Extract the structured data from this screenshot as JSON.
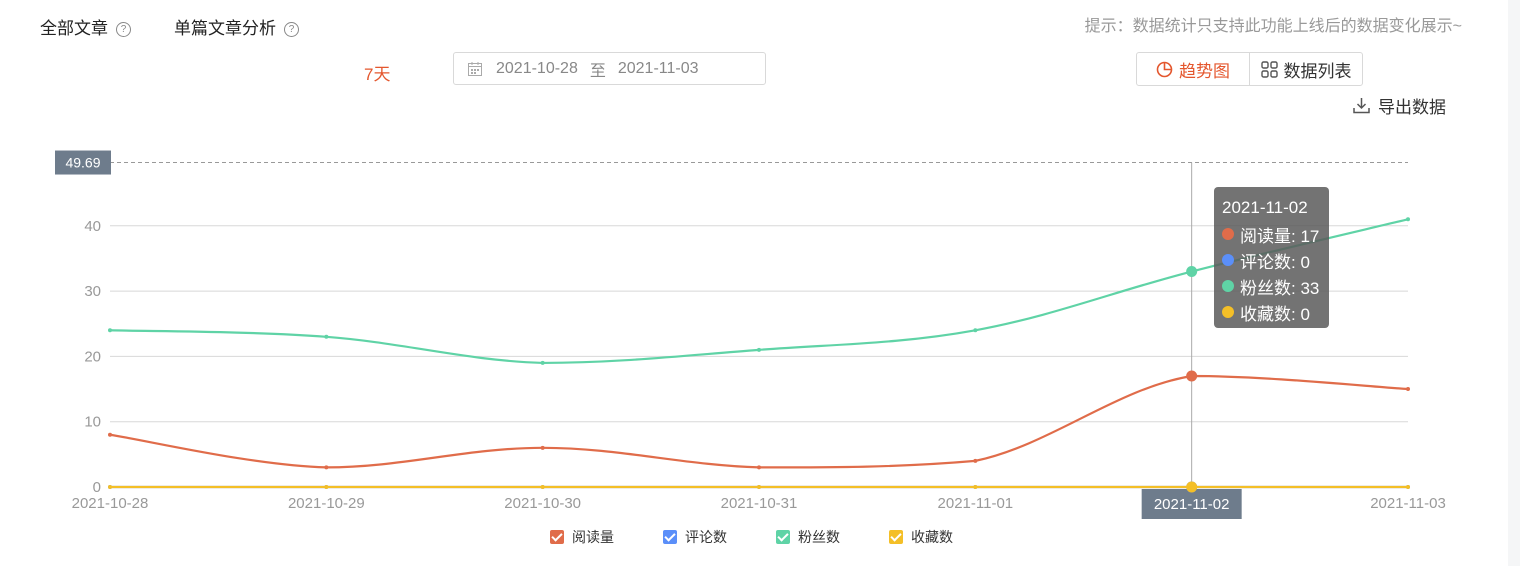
{
  "tabs": [
    {
      "label": "全部文章"
    },
    {
      "label": "单篇文章分析"
    }
  ],
  "hint": "提示：数据统计只支持此功能上线后的数据变化展示~",
  "range_label": "7天",
  "date_range": {
    "start": "2021-10-28",
    "separator": "至",
    "end": "2021-11-03"
  },
  "view_toggle": {
    "trend_label": "趋势图",
    "table_label": "数据列表"
  },
  "export_label": "导出数据",
  "colors": {
    "read": "#e06c4a",
    "comment": "#5b8ff9",
    "fans": "#5fd3a6",
    "collect": "#f4bf27",
    "accent": "#e4572e"
  },
  "tooltip": {
    "date": "2021-11-02",
    "rows": [
      {
        "text": "阅读量: 17",
        "color": "#e06c4a"
      },
      {
        "text": "评论数: 0",
        "color": "#5b8ff9"
      },
      {
        "text": "粉丝数: 33",
        "color": "#5fd3a6"
      },
      {
        "text": "收藏数: 0",
        "color": "#f4bf27"
      }
    ]
  },
  "chart_data": {
    "type": "line",
    "x": [
      "2021-10-28",
      "2021-10-29",
      "2021-10-30",
      "2021-10-31",
      "2021-11-01",
      "2021-11-02",
      "2021-11-03"
    ],
    "series": [
      {
        "name": "阅读量",
        "values": [
          8,
          3,
          6,
          3,
          4,
          17,
          15
        ],
        "color": "#e06c4a"
      },
      {
        "name": "评论数",
        "values": [
          0,
          0,
          0,
          0,
          0,
          0,
          0
        ],
        "color": "#5b8ff9"
      },
      {
        "name": "粉丝数",
        "values": [
          24,
          23,
          19,
          21,
          24,
          33,
          41
        ],
        "color": "#5fd3a6"
      },
      {
        "name": "收藏数",
        "values": [
          0,
          0,
          0,
          0,
          0,
          0,
          0
        ],
        "color": "#f4bf27"
      }
    ],
    "yticks": [
      0,
      10,
      20,
      30,
      40
    ],
    "ylim": [
      0,
      49.69
    ],
    "marker_value": 49.69,
    "highlight_x": "2021-11-02",
    "grid": true,
    "legend_position": "bottom"
  }
}
